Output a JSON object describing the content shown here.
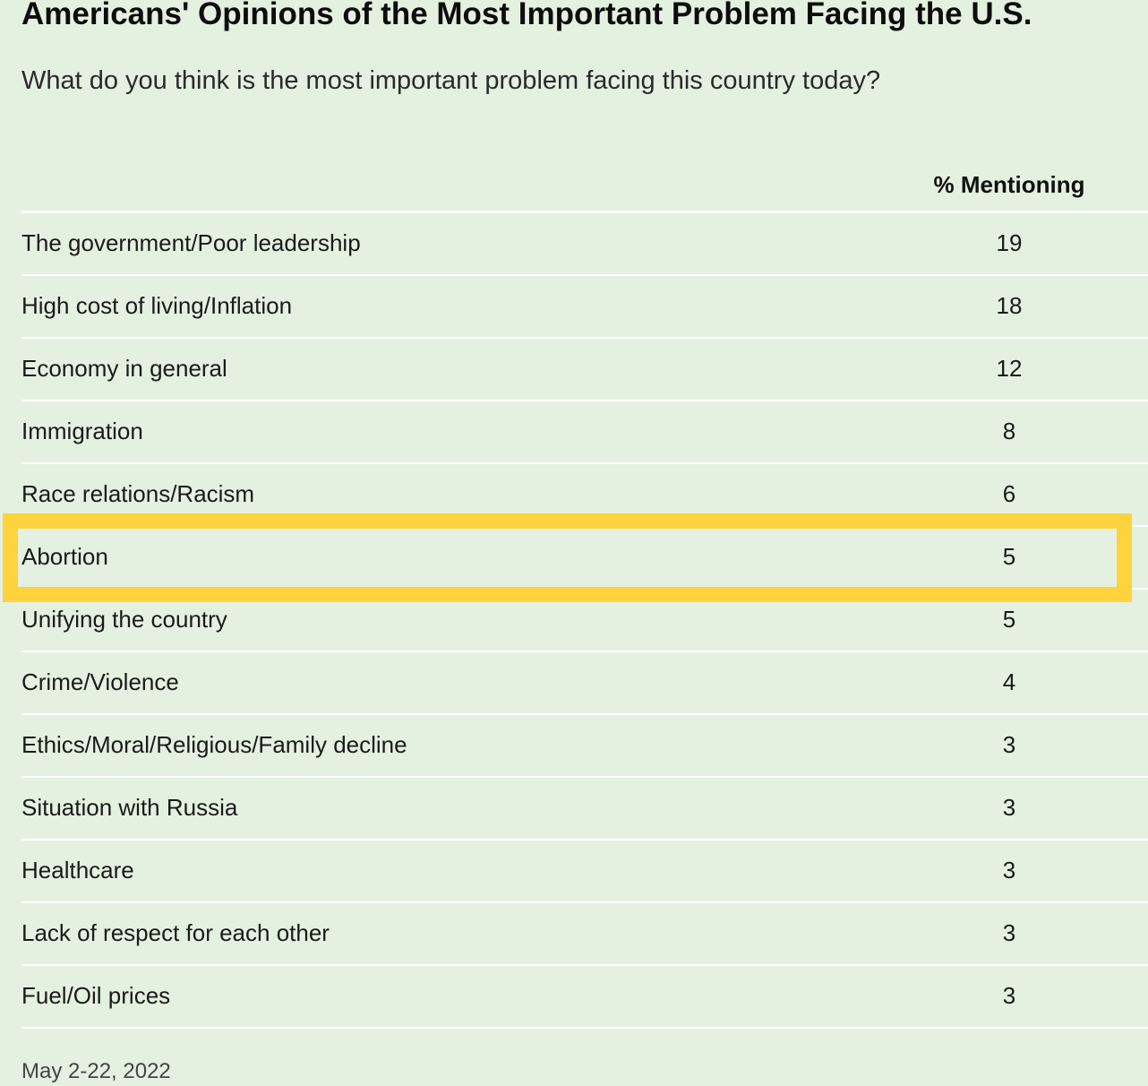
{
  "title": "Americans' Opinions of the Most Important Problem Facing the U.S.",
  "subtitle": "What do you think is the most important problem facing this country today?",
  "column_header": "% Mentioning",
  "footnote": "May 2-22, 2022",
  "colors": {
    "background": "#e4f1e0",
    "row_divider": "#ffffff",
    "highlight": "#ffd33d"
  },
  "highlighted_row": "Abortion",
  "chart_data": {
    "type": "table",
    "title": "Americans' Opinions of the Most Important Problem Facing the U.S.",
    "subtitle": "What do you think is the most important problem facing this country today?",
    "columns": [
      "",
      "% Mentioning"
    ],
    "rows": [
      {
        "label": "The government/Poor leadership",
        "value": 19
      },
      {
        "label": "High cost of living/Inflation",
        "value": 18
      },
      {
        "label": "Economy in general",
        "value": 12
      },
      {
        "label": "Immigration",
        "value": 8
      },
      {
        "label": "Race relations/Racism",
        "value": 6
      },
      {
        "label": "Abortion",
        "value": 5
      },
      {
        "label": "Unifying the country",
        "value": 5
      },
      {
        "label": "Crime/Violence",
        "value": 4
      },
      {
        "label": "Ethics/Moral/Religious/Family decline",
        "value": 3
      },
      {
        "label": "Situation with Russia",
        "value": 3
      },
      {
        "label": "Healthcare",
        "value": 3
      },
      {
        "label": "Lack of respect for each other",
        "value": 3
      },
      {
        "label": "Fuel/Oil prices",
        "value": 3
      }
    ]
  }
}
